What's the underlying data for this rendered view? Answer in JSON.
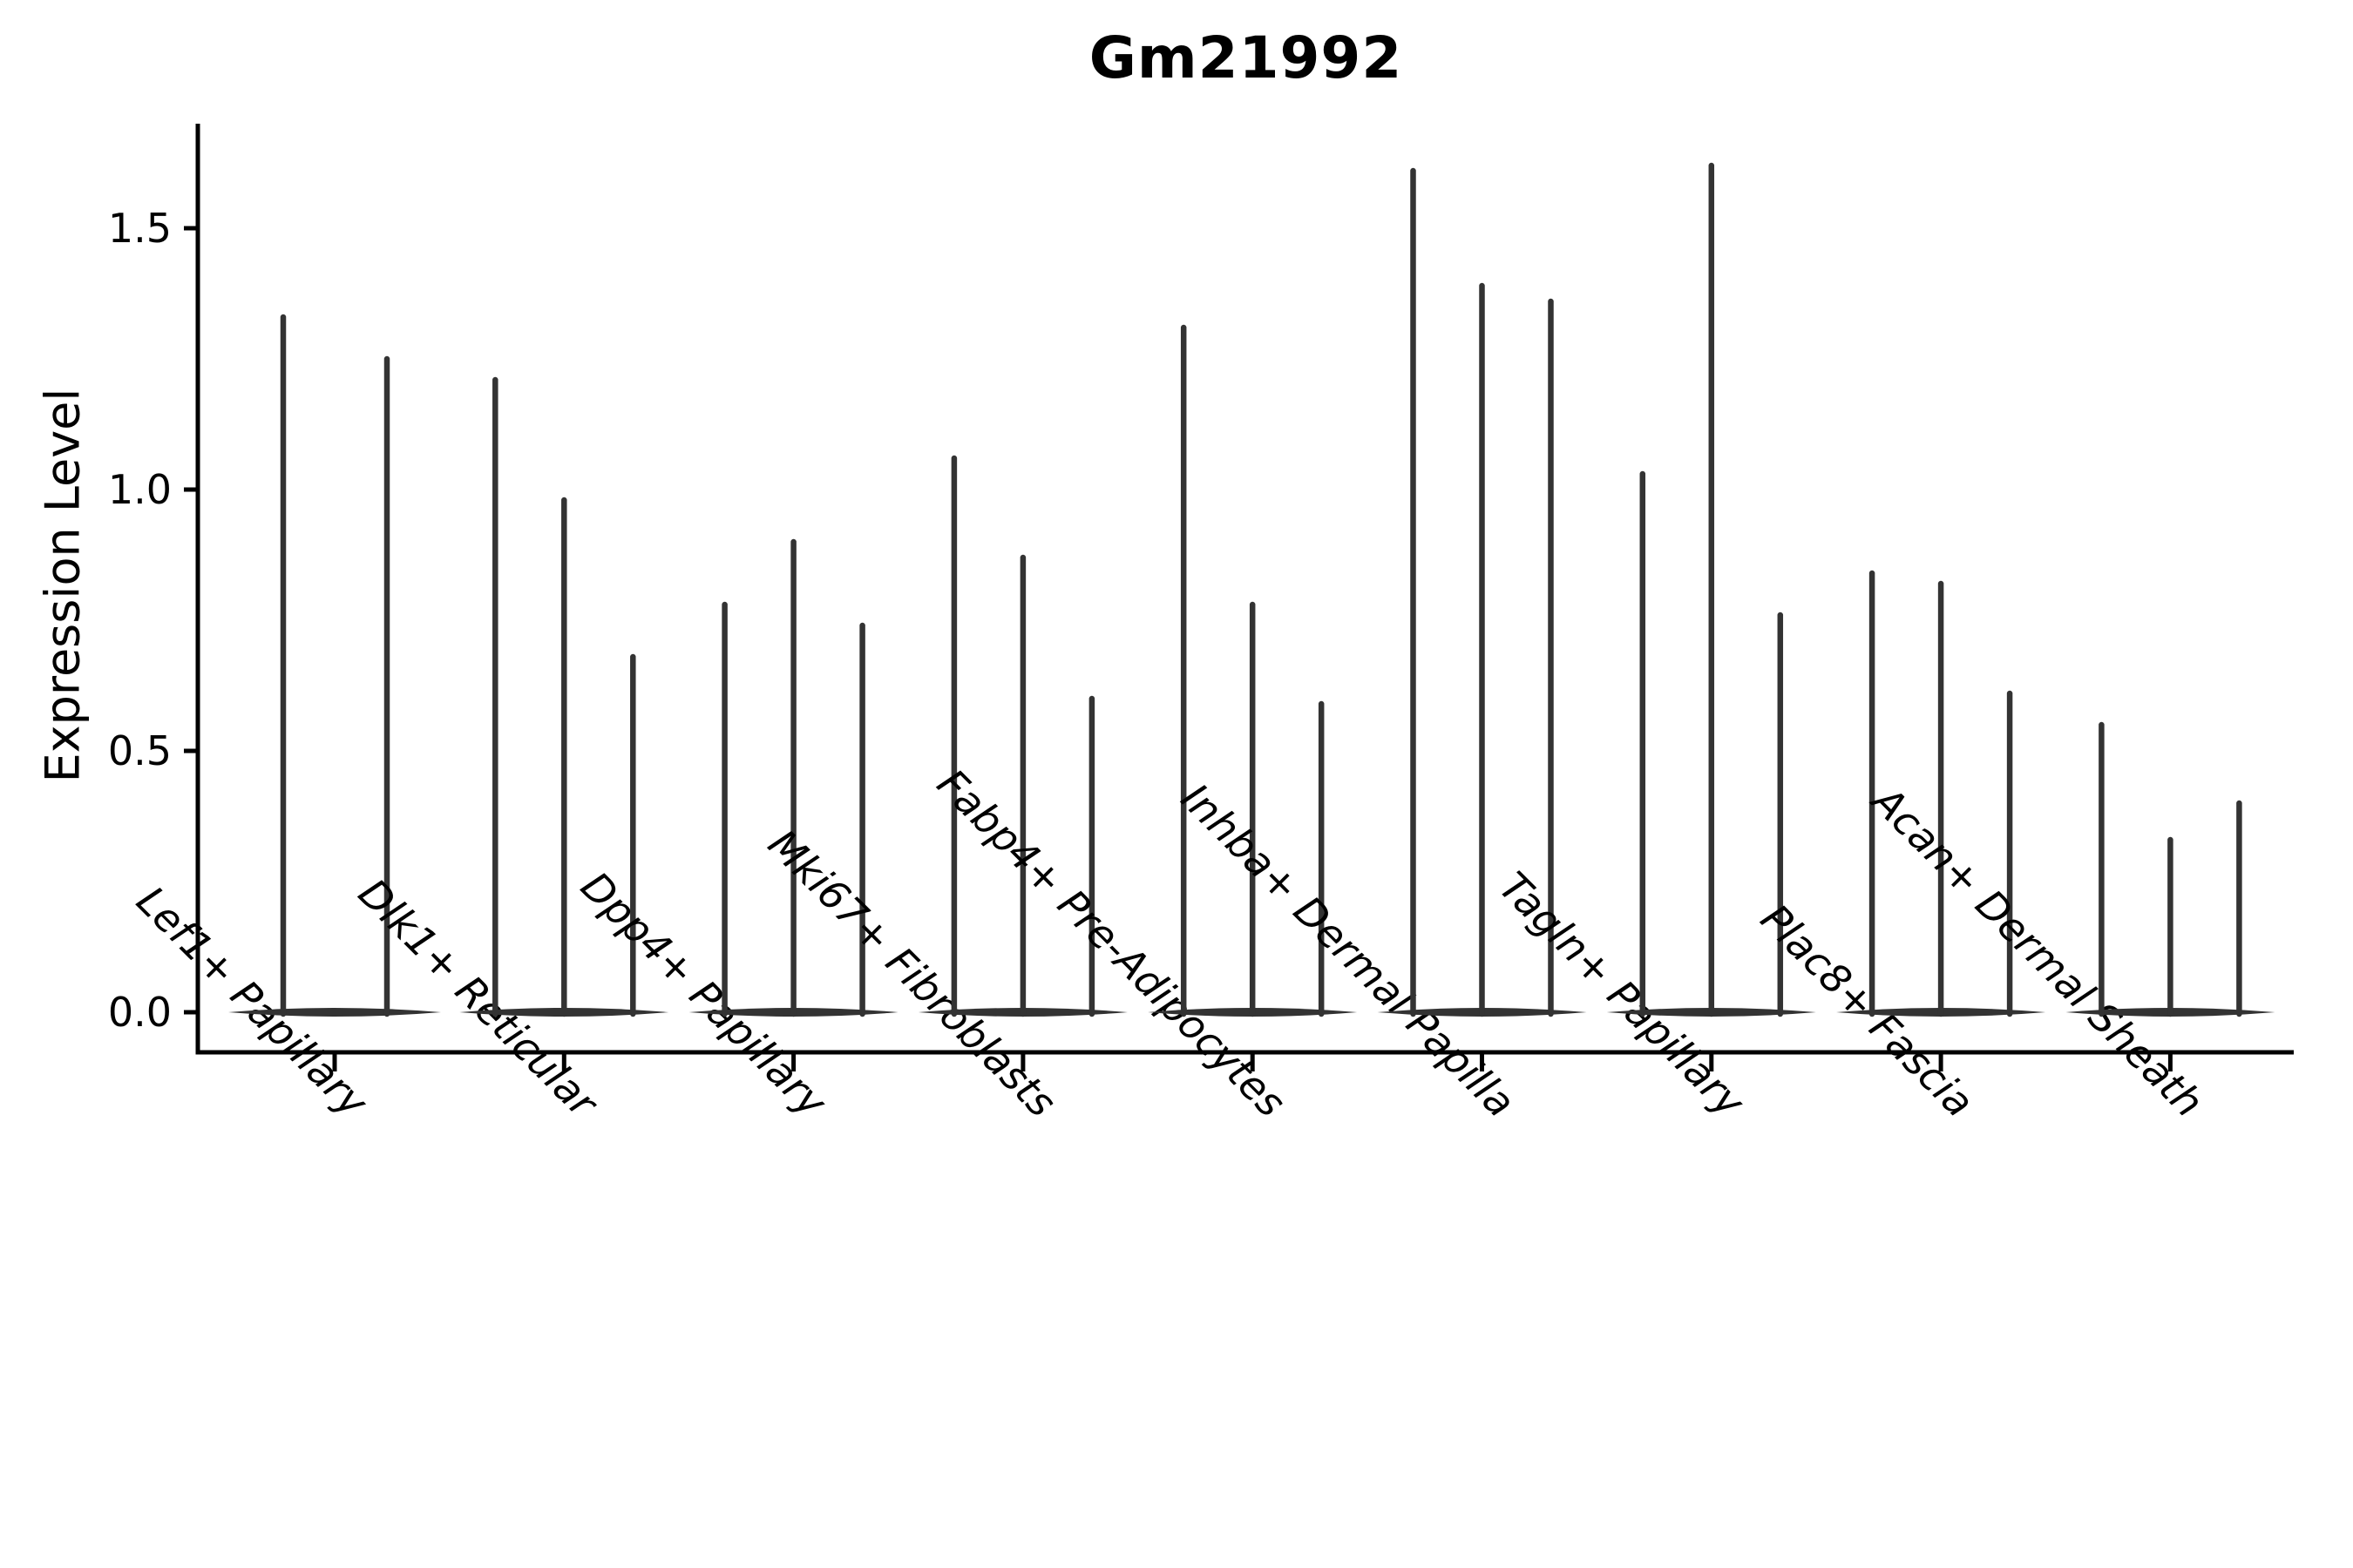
{
  "chart_data": {
    "type": "violin",
    "title": "Gm21992",
    "ylabel": "Expression Level",
    "xlabel": "",
    "yticks": [
      "0.0",
      "0.5",
      "1.0",
      "1.5"
    ],
    "ytick_values": [
      0.0,
      0.5,
      1.0,
      1.5
    ],
    "ylim": [
      -0.08,
      1.7
    ],
    "grid": false,
    "legend": "none",
    "ink_color": "#333333",
    "axis_color": "#000000",
    "text_color": "#000000",
    "background_color": "#ffffff",
    "categories": [
      "Lef1+ Papillary",
      "Dlk1+ Reticular",
      "Dpp4+ Papillary",
      "Mki67+ Fibroblasts",
      "Fabp4+ Pre-Adipocytes",
      "Inhba+ Dermal Papilla",
      "Tagln+ Papillary",
      "Plac8+ Fascia",
      "Acan+ Dermal Sheath"
    ],
    "series": [
      {
        "category": "Lef1+ Papillary",
        "violin_offsets": [
          -59,
          60
        ],
        "violin_max": [
          1.33,
          1.25
        ],
        "base_halfwidth": 122
      },
      {
        "category": "Dlk1+ Reticular",
        "violin_offsets": [
          -79,
          0,
          79
        ],
        "violin_max": [
          1.21,
          0.98,
          0.68
        ],
        "base_halfwidth": 120
      },
      {
        "category": "Dpp4+ Papillary",
        "violin_offsets": [
          -79,
          0,
          79
        ],
        "violin_max": [
          0.78,
          0.9,
          0.74
        ],
        "base_halfwidth": 120
      },
      {
        "category": "Mki67+ Fibroblasts",
        "violin_offsets": [
          -79,
          0,
          79
        ],
        "violin_max": [
          1.06,
          0.87,
          0.6
        ],
        "base_halfwidth": 120
      },
      {
        "category": "Fabp4+ Pre-Adipocytes",
        "violin_offsets": [
          -79,
          0,
          79
        ],
        "violin_max": [
          1.31,
          0.78,
          0.59
        ],
        "base_halfwidth": 120
      },
      {
        "category": "Inhba+ Dermal Papilla",
        "violin_offsets": [
          -79,
          0,
          79
        ],
        "violin_max": [
          1.61,
          1.39,
          1.36
        ],
        "base_halfwidth": 120
      },
      {
        "category": "Tagln+ Papillary",
        "violin_offsets": [
          -79,
          0,
          79
        ],
        "violin_max": [
          1.03,
          1.62,
          0.76
        ],
        "base_halfwidth": 120
      },
      {
        "category": "Plac8+ Fascia",
        "violin_offsets": [
          -79,
          0,
          79
        ],
        "violin_max": [
          0.84,
          0.82,
          0.61
        ],
        "base_halfwidth": 120
      },
      {
        "category": "Acan+ Dermal Sheath",
        "violin_offsets": [
          -79,
          0,
          79
        ],
        "violin_max": [
          0.55,
          0.33,
          0.4
        ],
        "base_halfwidth": 120
      }
    ]
  }
}
